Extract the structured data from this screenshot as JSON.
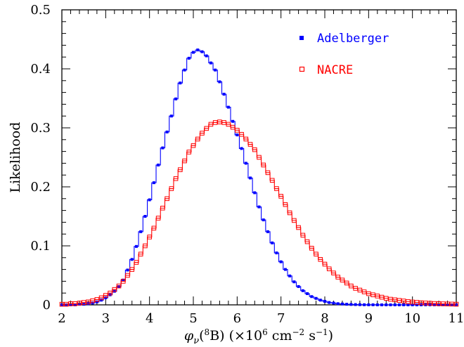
{
  "chart_data": {
    "type": "line",
    "xlabel_parts": {
      "phi": "φ",
      "nu": "ν",
      "open_paren": "(",
      "mass": "8",
      "element": "B",
      "units_a": ")  (×10",
      "exp6": "6",
      "units_b": " cm",
      "exp_m2": "−2",
      "units_c": " s",
      "exp_m1": "−1",
      "units_d": ")"
    },
    "ylabel": "Likelihood",
    "xlim": [
      2,
      11
    ],
    "ylim": [
      0,
      0.5
    ],
    "x_ticks": [
      2,
      3,
      4,
      5,
      6,
      7,
      8,
      9,
      10,
      11
    ],
    "x_tick_labels": [
      "2",
      "3",
      "4",
      "5",
      "6",
      "7",
      "8",
      "9",
      "10",
      "11"
    ],
    "y_ticks": [
      0,
      0.1,
      0.2,
      0.3,
      0.4,
      0.5
    ],
    "y_tick_labels": [
      "0",
      "0.1",
      "0.2",
      "0.3",
      "0.4",
      "0.5"
    ],
    "x_minor_step": 0.2,
    "y_minor_step": 0.02,
    "legend_placement": "top-right",
    "series": [
      {
        "name": "Adelberger",
        "color": "#0000ff",
        "marker": "filled-square",
        "step": true,
        "x": [
          2.0,
          2.1,
          2.2,
          2.3,
          2.4,
          2.5,
          2.6,
          2.7,
          2.8,
          2.9,
          3.0,
          3.1,
          3.2,
          3.3,
          3.4,
          3.5,
          3.6,
          3.7,
          3.8,
          3.9,
          4.0,
          4.1,
          4.2,
          4.3,
          4.4,
          4.5,
          4.6,
          4.7,
          4.8,
          4.9,
          5.0,
          5.1,
          5.2,
          5.3,
          5.4,
          5.5,
          5.6,
          5.7,
          5.8,
          5.9,
          6.0,
          6.1,
          6.2,
          6.3,
          6.4,
          6.5,
          6.6,
          6.7,
          6.8,
          6.9,
          7.0,
          7.1,
          7.2,
          7.3,
          7.4,
          7.5,
          7.6,
          7.7,
          7.8,
          7.9,
          8.0,
          8.1,
          8.2,
          8.3,
          8.4,
          8.5,
          8.6,
          8.7,
          8.8,
          8.9,
          9.0,
          9.1,
          9.2,
          9.3,
          9.4,
          9.5,
          9.6,
          9.7,
          9.8,
          9.9,
          10.0,
          10.1,
          10.2,
          10.3,
          10.4,
          10.5,
          10.6,
          10.7,
          10.8,
          10.9,
          11.0
        ],
        "y": [
          0.0,
          0.0,
          0.0,
          0.0,
          0.001,
          0.001,
          0.002,
          0.003,
          0.005,
          0.008,
          0.012,
          0.017,
          0.023,
          0.031,
          0.042,
          0.059,
          0.077,
          0.099,
          0.124,
          0.15,
          0.178,
          0.207,
          0.237,
          0.266,
          0.293,
          0.32,
          0.349,
          0.376,
          0.398,
          0.418,
          0.428,
          0.432,
          0.429,
          0.422,
          0.41,
          0.398,
          0.378,
          0.357,
          0.335,
          0.311,
          0.288,
          0.265,
          0.24,
          0.215,
          0.19,
          0.166,
          0.144,
          0.124,
          0.105,
          0.088,
          0.073,
          0.06,
          0.049,
          0.039,
          0.031,
          0.024,
          0.019,
          0.014,
          0.011,
          0.008,
          0.006,
          0.004,
          0.003,
          0.002,
          0.0015,
          0.001,
          0.0007,
          0.0005,
          0.0003,
          0.0002,
          0.0001,
          0.0001,
          0.0,
          0.0,
          0.0,
          0.0,
          0.0,
          0.0,
          0.0,
          0.0,
          0.0,
          0.0,
          0.0,
          0.0,
          0.0,
          0.0,
          0.0,
          0.0,
          0.0,
          0.0,
          0.0
        ]
      },
      {
        "name": "NACRE",
        "color": "#ff0000",
        "marker": "open-square",
        "step": true,
        "x": [
          2.0,
          2.1,
          2.2,
          2.3,
          2.4,
          2.5,
          2.6,
          2.7,
          2.8,
          2.9,
          3.0,
          3.1,
          3.2,
          3.3,
          3.4,
          3.5,
          3.6,
          3.7,
          3.8,
          3.9,
          4.0,
          4.1,
          4.2,
          4.3,
          4.4,
          4.5,
          4.6,
          4.7,
          4.8,
          4.9,
          5.0,
          5.1,
          5.2,
          5.3,
          5.4,
          5.5,
          5.6,
          5.7,
          5.8,
          5.9,
          6.0,
          6.1,
          6.2,
          6.3,
          6.4,
          6.5,
          6.6,
          6.7,
          6.8,
          6.9,
          7.0,
          7.1,
          7.2,
          7.3,
          7.4,
          7.5,
          7.6,
          7.7,
          7.8,
          7.9,
          8.0,
          8.1,
          8.2,
          8.3,
          8.4,
          8.5,
          8.6,
          8.7,
          8.8,
          8.9,
          9.0,
          9.1,
          9.2,
          9.3,
          9.4,
          9.5,
          9.6,
          9.7,
          9.8,
          9.9,
          10.0,
          10.1,
          10.2,
          10.3,
          10.4,
          10.5,
          10.6,
          10.7,
          10.8,
          10.9,
          11.0
        ],
        "y": [
          0.001,
          0.001,
          0.002,
          0.002,
          0.003,
          0.004,
          0.005,
          0.007,
          0.009,
          0.012,
          0.016,
          0.02,
          0.026,
          0.032,
          0.04,
          0.05,
          0.06,
          0.072,
          0.086,
          0.1,
          0.115,
          0.13,
          0.147,
          0.164,
          0.18,
          0.197,
          0.214,
          0.229,
          0.244,
          0.259,
          0.27,
          0.281,
          0.291,
          0.299,
          0.306,
          0.309,
          0.31,
          0.309,
          0.306,
          0.301,
          0.296,
          0.289,
          0.281,
          0.272,
          0.263,
          0.25,
          0.237,
          0.224,
          0.211,
          0.197,
          0.184,
          0.17,
          0.156,
          0.143,
          0.131,
          0.118,
          0.107,
          0.096,
          0.086,
          0.077,
          0.069,
          0.061,
          0.054,
          0.047,
          0.042,
          0.037,
          0.032,
          0.028,
          0.025,
          0.022,
          0.019,
          0.017,
          0.015,
          0.013,
          0.011,
          0.0095,
          0.0085,
          0.0075,
          0.0065,
          0.0055,
          0.0048,
          0.0042,
          0.0036,
          0.0031,
          0.0027,
          0.0023,
          0.002,
          0.0017,
          0.0015,
          0.0013,
          0.0011
        ]
      }
    ]
  }
}
